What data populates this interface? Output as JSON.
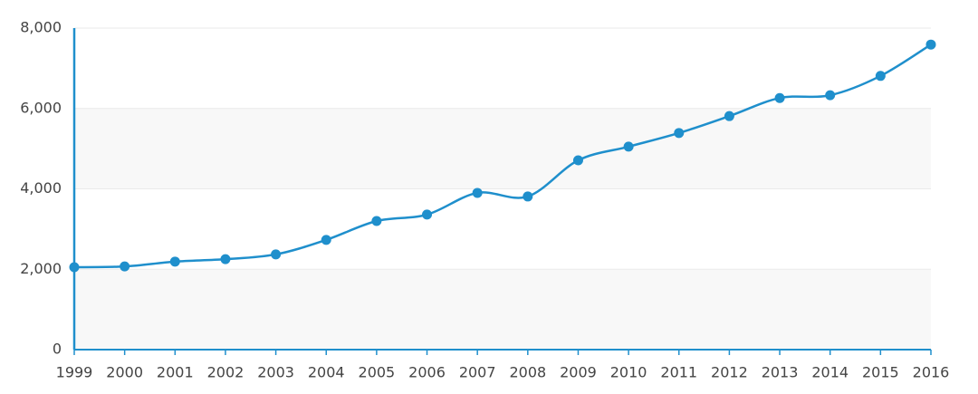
{
  "chart_data": {
    "type": "line",
    "x": [
      1999,
      2000,
      2001,
      2002,
      2003,
      2004,
      2005,
      2006,
      2007,
      2008,
      2009,
      2010,
      2011,
      2012,
      2013,
      2014,
      2015,
      2016
    ],
    "values": [
      2050,
      2070,
      2190,
      2250,
      2370,
      2730,
      3200,
      3360,
      3900,
      3810,
      4710,
      5050,
      5390,
      5810,
      6260,
      6330,
      6810,
      7590
    ],
    "color": "#1f8fcc",
    "xlim": [
      1999,
      2016
    ],
    "xticks": [
      1999,
      2000,
      2001,
      2002,
      2003,
      2004,
      2005,
      2006,
      2007,
      2008,
      2009,
      2010,
      2011,
      2012,
      2013,
      2014,
      2015,
      2016
    ],
    "ylim": [
      0,
      8000
    ],
    "yticks": [
      0,
      {
        "value": 2000,
        "label": "2,000"
      },
      {
        "value": 4000,
        "label": "4,000"
      },
      {
        "value": 6000,
        "label": "6,000"
      },
      {
        "value": 8000,
        "label": "8,000"
      }
    ],
    "grid": true
  }
}
